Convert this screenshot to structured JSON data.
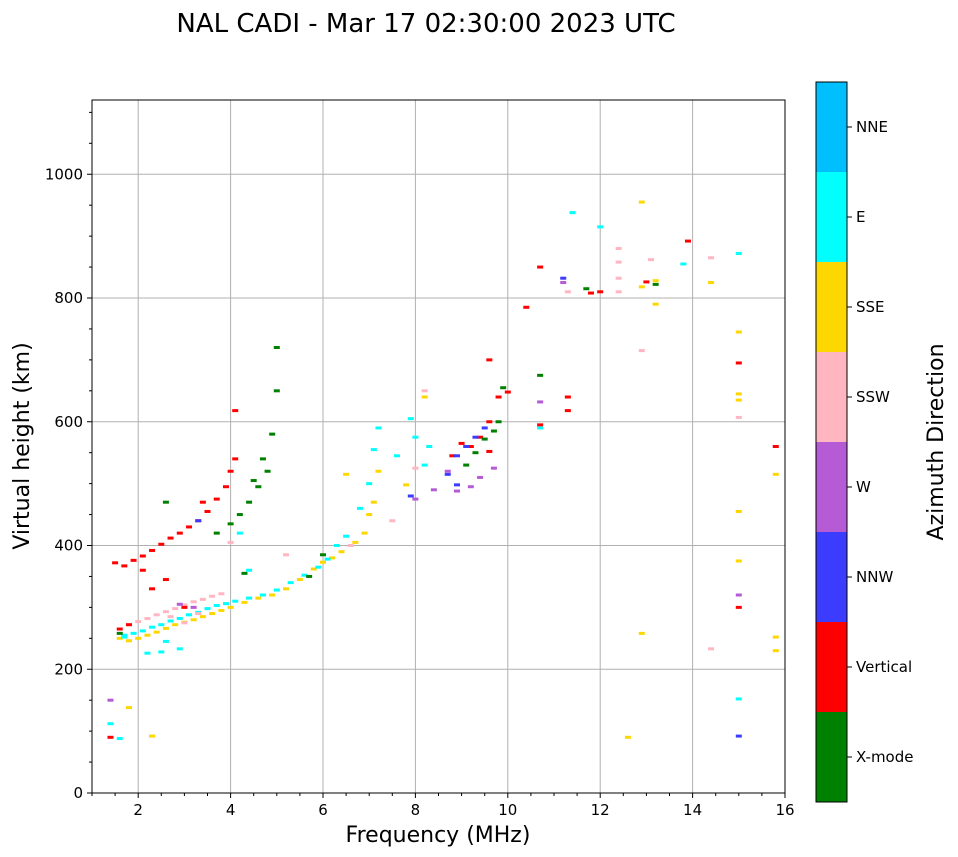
{
  "chart_data": {
    "type": "scatter",
    "title": "NAL CADI - Mar 17 02:30:00 2023 UTC",
    "xlabel": "Frequency (MHz)",
    "ylabel": "Virtual height (km)",
    "xlim": [
      1,
      16
    ],
    "ylim": [
      0,
      1120
    ],
    "xticks": [
      2,
      4,
      6,
      8,
      10,
      12,
      14,
      16
    ],
    "yticks": [
      0,
      200,
      400,
      600,
      800,
      1000
    ],
    "grid": true,
    "colorbar": {
      "label": "Azimuth Direction",
      "categories": [
        {
          "name": "X-mode",
          "color": "#008000"
        },
        {
          "name": "Vertical",
          "color": "#ff0000"
        },
        {
          "name": "NNW",
          "color": "#3c3cff"
        },
        {
          "name": "W",
          "color": "#b65bd6"
        },
        {
          "name": "SSW",
          "color": "#ffb6c1"
        },
        {
          "name": "SSE",
          "color": "#ffd700"
        },
        {
          "name": "E",
          "color": "#00ffff"
        },
        {
          "name": "NNE",
          "color": "#00bfff"
        }
      ]
    },
    "series": [
      {
        "name": "SSE",
        "points": [
          [
            1.6,
            250
          ],
          [
            1.8,
            246
          ],
          [
            2.0,
            250
          ],
          [
            2.2,
            255
          ],
          [
            2.4,
            260
          ],
          [
            2.6,
            266
          ],
          [
            2.8,
            272
          ],
          [
            3.0,
            276
          ],
          [
            3.2,
            280
          ],
          [
            3.4,
            285
          ],
          [
            3.6,
            290
          ],
          [
            3.8,
            295
          ],
          [
            4.0,
            300
          ],
          [
            4.3,
            308
          ],
          [
            4.6,
            315
          ],
          [
            4.9,
            320
          ],
          [
            5.2,
            330
          ],
          [
            5.5,
            345
          ],
          [
            5.8,
            362
          ],
          [
            6.0,
            373
          ],
          [
            6.2,
            380
          ],
          [
            6.4,
            390
          ],
          [
            6.7,
            405
          ],
          [
            6.9,
            420
          ],
          [
            7.0,
            450
          ],
          [
            7.1,
            470
          ],
          [
            7.2,
            520
          ],
          [
            6.5,
            515
          ],
          [
            7.8,
            498
          ],
          [
            8.2,
            640
          ],
          [
            12.9,
            955
          ],
          [
            12.9,
            818
          ],
          [
            13.2,
            828
          ],
          [
            13.2,
            790
          ],
          [
            14.4,
            825
          ],
          [
            15.0,
            745
          ],
          [
            15.0,
            645
          ],
          [
            15.0,
            635
          ],
          [
            15.0,
            455
          ],
          [
            15.0,
            375
          ],
          [
            12.9,
            258
          ],
          [
            12.6,
            90
          ],
          [
            15.8,
            515
          ],
          [
            15.8,
            252
          ],
          [
            15.8,
            230
          ],
          [
            1.8,
            138
          ],
          [
            2.3,
            92
          ]
        ]
      },
      {
        "name": "E",
        "points": [
          [
            1.7,
            252
          ],
          [
            1.9,
            258
          ],
          [
            2.1,
            262
          ],
          [
            2.3,
            268
          ],
          [
            2.5,
            272
          ],
          [
            2.7,
            278
          ],
          [
            2.9,
            282
          ],
          [
            3.1,
            288
          ],
          [
            3.3,
            292
          ],
          [
            3.5,
            298
          ],
          [
            3.7,
            303
          ],
          [
            3.9,
            306
          ],
          [
            4.1,
            310
          ],
          [
            4.4,
            315
          ],
          [
            4.7,
            320
          ],
          [
            5.0,
            328
          ],
          [
            5.3,
            340
          ],
          [
            5.6,
            352
          ],
          [
            5.9,
            365
          ],
          [
            6.1,
            378
          ],
          [
            6.3,
            400
          ],
          [
            6.5,
            415
          ],
          [
            6.8,
            460
          ],
          [
            7.0,
            500
          ],
          [
            7.1,
            555
          ],
          [
            7.2,
            590
          ],
          [
            7.6,
            545
          ],
          [
            7.9,
            605
          ],
          [
            8.0,
            575
          ],
          [
            8.2,
            530
          ],
          [
            8.3,
            560
          ],
          [
            2.2,
            226
          ],
          [
            2.5,
            228
          ],
          [
            2.6,
            245
          ],
          [
            2.9,
            233
          ],
          [
            1.4,
            112
          ],
          [
            1.6,
            88
          ],
          [
            11.4,
            938
          ],
          [
            12.0,
            915
          ],
          [
            13.8,
            855
          ],
          [
            15.0,
            872
          ],
          [
            15.0,
            152
          ],
          [
            1.7,
            255
          ],
          [
            4.2,
            420
          ],
          [
            4.4,
            360
          ],
          [
            10.7,
            590
          ]
        ]
      },
      {
        "name": "SSW",
        "points": [
          [
            1.8,
            272
          ],
          [
            2.0,
            277
          ],
          [
            2.2,
            282
          ],
          [
            2.4,
            288
          ],
          [
            2.6,
            293
          ],
          [
            2.8,
            298
          ],
          [
            3.0,
            304
          ],
          [
            3.2,
            309
          ],
          [
            3.4,
            313
          ],
          [
            3.6,
            318
          ],
          [
            3.8,
            322
          ],
          [
            2.7,
            285
          ],
          [
            3.0,
            275
          ],
          [
            3.3,
            290
          ],
          [
            5.2,
            385
          ],
          [
            6.6,
            400
          ],
          [
            7.5,
            440
          ],
          [
            8.0,
            525
          ],
          [
            8.2,
            650
          ],
          [
            11.3,
            810
          ],
          [
            12.4,
            880
          ],
          [
            12.4,
            858
          ],
          [
            12.4,
            832
          ],
          [
            12.4,
            810
          ],
          [
            12.9,
            715
          ],
          [
            13.1,
            862
          ],
          [
            14.4,
            865
          ],
          [
            15.0,
            607
          ],
          [
            14.4,
            233
          ],
          [
            4.0,
            405
          ]
        ]
      },
      {
        "name": "Vertical",
        "points": [
          [
            1.5,
            372
          ],
          [
            1.7,
            367
          ],
          [
            1.9,
            376
          ],
          [
            2.1,
            383
          ],
          [
            2.3,
            392
          ],
          [
            2.5,
            402
          ],
          [
            2.7,
            412
          ],
          [
            2.9,
            420
          ],
          [
            3.1,
            430
          ],
          [
            3.3,
            440
          ],
          [
            3.5,
            455
          ],
          [
            3.7,
            475
          ],
          [
            3.9,
            495
          ],
          [
            4.0,
            520
          ],
          [
            4.1,
            540
          ],
          [
            4.1,
            618
          ],
          [
            2.1,
            360
          ],
          [
            2.3,
            330
          ],
          [
            2.6,
            345
          ],
          [
            3.0,
            300
          ],
          [
            1.6,
            265
          ],
          [
            1.8,
            272
          ],
          [
            1.4,
            90
          ],
          [
            9.2,
            560
          ],
          [
            9.4,
            575
          ],
          [
            9.6,
            552
          ],
          [
            9.6,
            600
          ],
          [
            9.6,
            700
          ],
          [
            9.8,
            640
          ],
          [
            10.0,
            648
          ],
          [
            10.4,
            785
          ],
          [
            10.7,
            850
          ],
          [
            11.3,
            640
          ],
          [
            11.3,
            618
          ],
          [
            11.8,
            808
          ],
          [
            12.0,
            810
          ],
          [
            13.0,
            826
          ],
          [
            13.9,
            892
          ],
          [
            15.0,
            695
          ],
          [
            15.0,
            300
          ],
          [
            15.8,
            560
          ],
          [
            10.7,
            595
          ],
          [
            8.8,
            545
          ],
          [
            9.0,
            565
          ],
          [
            3.4,
            470
          ]
        ]
      },
      {
        "name": "NNW",
        "points": [
          [
            8.7,
            515
          ],
          [
            8.9,
            498
          ],
          [
            8.9,
            545
          ],
          [
            9.1,
            560
          ],
          [
            9.3,
            575
          ],
          [
            9.5,
            590
          ],
          [
            7.9,
            480
          ],
          [
            15.0,
            92
          ],
          [
            11.2,
            832
          ],
          [
            3.3,
            440
          ]
        ]
      },
      {
        "name": "W",
        "points": [
          [
            8.0,
            475
          ],
          [
            8.4,
            490
          ],
          [
            8.7,
            520
          ],
          [
            8.9,
            488
          ],
          [
            9.2,
            495
          ],
          [
            9.4,
            510
          ],
          [
            9.7,
            525
          ],
          [
            10.7,
            632
          ],
          [
            11.2,
            825
          ],
          [
            15.0,
            320
          ],
          [
            1.4,
            150
          ],
          [
            3.2,
            300
          ],
          [
            2.9,
            305
          ]
        ]
      },
      {
        "name": "X-mode",
        "points": [
          [
            4.0,
            435
          ],
          [
            4.2,
            450
          ],
          [
            4.4,
            470
          ],
          [
            4.6,
            495
          ],
          [
            4.8,
            520
          ],
          [
            4.9,
            580
          ],
          [
            5.0,
            650
          ],
          [
            5.0,
            720
          ],
          [
            4.7,
            540
          ],
          [
            4.5,
            505
          ],
          [
            9.1,
            530
          ],
          [
            9.3,
            550
          ],
          [
            9.5,
            572
          ],
          [
            9.7,
            585
          ],
          [
            9.8,
            600
          ],
          [
            9.9,
            655
          ],
          [
            10.7,
            675
          ],
          [
            11.7,
            815
          ],
          [
            13.2,
            822
          ],
          [
            3.7,
            420
          ],
          [
            2.6,
            470
          ],
          [
            5.7,
            350
          ],
          [
            6.0,
            385
          ],
          [
            4.3,
            355
          ],
          [
            1.6,
            258
          ]
        ]
      }
    ]
  }
}
